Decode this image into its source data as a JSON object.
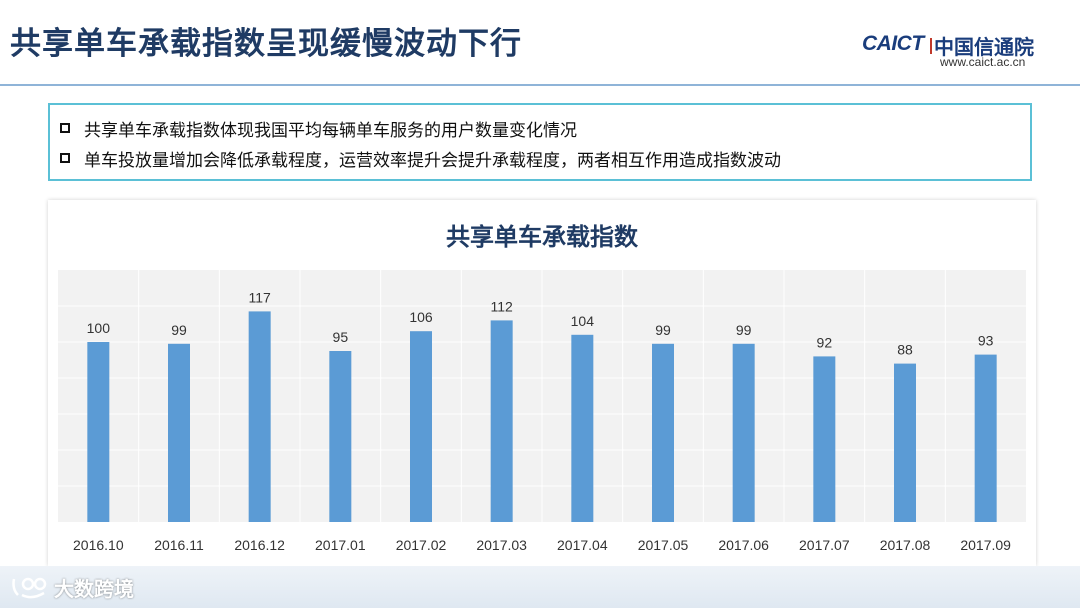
{
  "slide": {
    "title": "共享单车承载指数呈现缓慢波动下行"
  },
  "logo": {
    "brand": "CAICT",
    "cn_name": "中国信通院",
    "url": "www.caict.ac.cn"
  },
  "info_box": {
    "bullets": [
      "共享单车承载指数体现我国平均每辆单车服务的用户数量变化情况",
      "单车投放量增加会降低承载程度，运营效率提升会提升承载程度，两者相互作用造成指数波动"
    ]
  },
  "chart_data": {
    "type": "bar",
    "title": "共享单车承载指数",
    "xlabel": "",
    "ylabel": "",
    "categories": [
      "2016.10",
      "2016.11",
      "2016.12",
      "2017.01",
      "2017.02",
      "2017.03",
      "2017.04",
      "2017.05",
      "2017.06",
      "2017.07",
      "2017.08",
      "2017.09"
    ],
    "values": [
      100,
      99,
      117,
      95,
      106,
      112,
      104,
      99,
      99,
      92,
      88,
      93
    ],
    "ylim": [
      0,
      140
    ],
    "grid": true,
    "legend": "none",
    "colors": {
      "bar": "#5b9bd5",
      "plot_bg": "#f2f2f2",
      "grid": "#ffffff"
    }
  },
  "watermark": {
    "text": "大数跨境"
  }
}
